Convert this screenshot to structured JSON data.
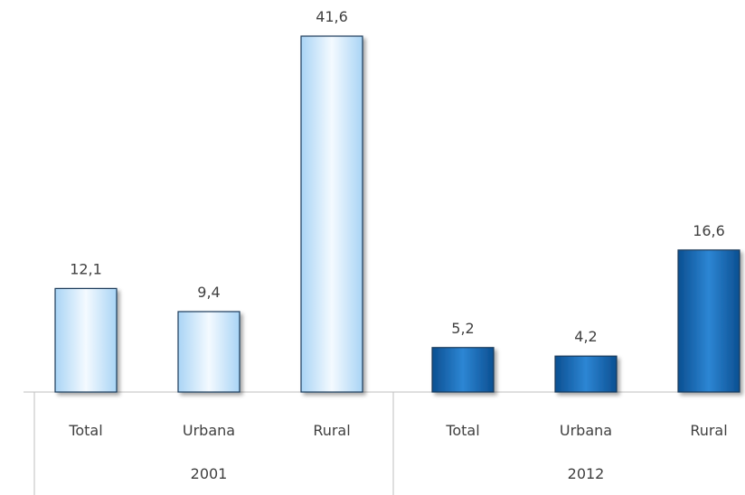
{
  "chart_data": {
    "type": "bar",
    "groups": [
      {
        "label": "2001",
        "categories": [
          "Total",
          "Urbana",
          "Rural"
        ],
        "values": [
          12.1,
          9.4,
          41.6
        ],
        "value_labels": [
          "12,1",
          "9,4",
          "41,6"
        ],
        "style": "light-blue"
      },
      {
        "label": "2012",
        "categories": [
          "Total",
          "Urbana",
          "Rural"
        ],
        "values": [
          5.2,
          4.2,
          16.6
        ],
        "value_labels": [
          "5,2",
          "4,2",
          "16,6"
        ],
        "style": "dark-blue"
      }
    ],
    "title": "",
    "xlabel": "",
    "ylabel": "",
    "ylim": [
      0,
      41.6
    ],
    "grid": false,
    "legend": "none"
  },
  "colors": {
    "light_fill_top": "#f4faff",
    "light_fill_bottom": "#a9d4f5",
    "dark_fill_top": "#2d86d4",
    "dark_fill_bottom": "#0b4f91",
    "bar_outline": "#1d3b5a",
    "axis": "#bfbfbf",
    "label_text": "#404040"
  }
}
